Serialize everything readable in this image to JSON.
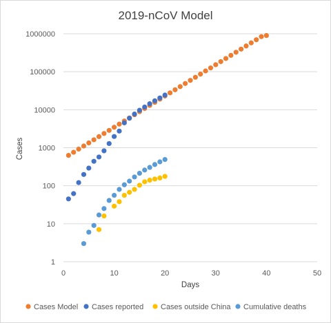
{
  "chart_data": {
    "type": "scatter",
    "title": "2019-nCoV Model",
    "xlabel": "Days",
    "ylabel": "Cases",
    "xlim": [
      0,
      50
    ],
    "xticks": [
      0,
      10,
      20,
      30,
      40,
      50
    ],
    "xtick_labels": [
      "0",
      "10",
      "20",
      "30",
      "40",
      "50"
    ],
    "ylim": [
      1,
      1000000
    ],
    "yscale": "log",
    "yticks": [
      1,
      10,
      100,
      1000,
      10000,
      100000,
      1000000
    ],
    "ytick_labels": [
      "1",
      "10",
      "100",
      "1000",
      "10000",
      "100000",
      "1000000"
    ],
    "grid": "horizontal",
    "legend_position": "bottom",
    "series": [
      {
        "name": "Cases Model",
        "color": "#ED7D31",
        "points": [
          [
            1,
            630
          ],
          [
            2,
            760
          ],
          [
            3,
            920
          ],
          [
            4,
            1110
          ],
          [
            5,
            1340
          ],
          [
            6,
            1620
          ],
          [
            7,
            1960
          ],
          [
            8,
            2370
          ],
          [
            9,
            2860
          ],
          [
            10,
            3460
          ],
          [
            11,
            4180
          ],
          [
            12,
            5050
          ],
          [
            13,
            6100
          ],
          [
            14,
            7380
          ],
          [
            15,
            8920
          ],
          [
            16,
            10800
          ],
          [
            17,
            13000
          ],
          [
            18,
            15700
          ],
          [
            19,
            19000
          ],
          [
            20,
            23000
          ],
          [
            21,
            27800
          ],
          [
            22,
            33600
          ],
          [
            23,
            40600
          ],
          [
            24,
            49000
          ],
          [
            25,
            59300
          ],
          [
            26,
            71600
          ],
          [
            27,
            86600
          ],
          [
            28,
            105000
          ],
          [
            29,
            126000
          ],
          [
            30,
            153000
          ],
          [
            31,
            185000
          ],
          [
            32,
            223000
          ],
          [
            33,
            270000
          ],
          [
            34,
            326000
          ],
          [
            35,
            394000
          ],
          [
            36,
            476000
          ],
          [
            37,
            575000
          ],
          [
            38,
            695000
          ],
          [
            39,
            840000
          ],
          [
            40,
            900000
          ]
        ]
      },
      {
        "name": "Cases reported",
        "color": "#4472C4",
        "points": [
          [
            1,
            45
          ],
          [
            2,
            62
          ],
          [
            3,
            121
          ],
          [
            4,
            198
          ],
          [
            5,
            291
          ],
          [
            6,
            440
          ],
          [
            7,
            571
          ],
          [
            8,
            830
          ],
          [
            9,
            1287
          ],
          [
            10,
            1975
          ],
          [
            11,
            2744
          ],
          [
            12,
            4515
          ],
          [
            13,
            5974
          ],
          [
            14,
            7711
          ],
          [
            15,
            9692
          ],
          [
            16,
            11791
          ],
          [
            17,
            14380
          ],
          [
            18,
            17205
          ],
          [
            19,
            20438
          ],
          [
            20,
            24324
          ]
        ]
      },
      {
        "name": "Cases outside China",
        "color": "#FFC000",
        "points": [
          [
            7,
            7
          ],
          [
            8,
            16
          ],
          [
            10,
            29
          ],
          [
            11,
            38
          ],
          [
            12,
            56
          ],
          [
            13,
            67
          ],
          [
            14,
            80
          ],
          [
            15,
            103
          ],
          [
            16,
            127
          ],
          [
            17,
            140
          ],
          [
            18,
            150
          ],
          [
            19,
            160
          ],
          [
            20,
            176
          ]
        ]
      },
      {
        "name": "Cumulative deaths",
        "color": "#5B9BD5",
        "points": [
          [
            4,
            3
          ],
          [
            5,
            6
          ],
          [
            6,
            9
          ],
          [
            7,
            17
          ],
          [
            8,
            25
          ],
          [
            9,
            41
          ],
          [
            10,
            56
          ],
          [
            11,
            80
          ],
          [
            12,
            106
          ],
          [
            13,
            132
          ],
          [
            14,
            170
          ],
          [
            15,
            213
          ],
          [
            16,
            259
          ],
          [
            17,
            304
          ],
          [
            18,
            361
          ],
          [
            19,
            425
          ],
          [
            20,
            490
          ]
        ]
      }
    ]
  }
}
